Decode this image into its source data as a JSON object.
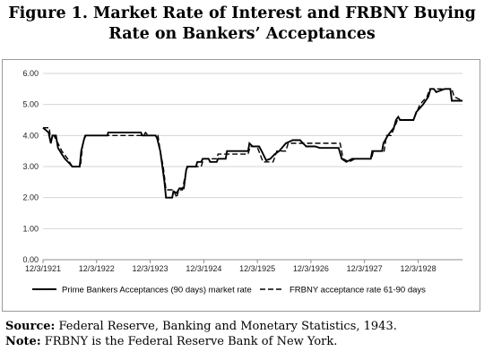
{
  "figure": {
    "title_line1": "Figure 1.  Market Rate of Interest and FRBNY Buying",
    "title_line2": "Rate on Bankers’ Acceptances"
  },
  "footnotes": {
    "source_label": "Source:",
    "source_text": " Federal Reserve, Banking and Monetary Statistics, 1943.",
    "note_label": "Note:",
    "note_text": " FRBNY is the Federal Reserve Bank of New York."
  },
  "chart_data": {
    "type": "line",
    "title": "",
    "xlabel": "",
    "ylabel": "",
    "x_range": [
      "1921-12-03",
      "1929-10-01"
    ],
    "ylim": [
      0,
      6
    ],
    "y_ticks": [
      "0.00",
      "1.00",
      "2.00",
      "3.00",
      "4.00",
      "5.00",
      "6.00"
    ],
    "x_ticks": [
      {
        "date": "1921-12-03",
        "label": "12/3/1921"
      },
      {
        "date": "1922-12-03",
        "label": "12/3/1922"
      },
      {
        "date": "1923-12-03",
        "label": "12/3/1923"
      },
      {
        "date": "1924-12-03",
        "label": "12/3/1924"
      },
      {
        "date": "1925-12-03",
        "label": "12/3/1925"
      },
      {
        "date": "1926-12-03",
        "label": "12/3/1926"
      },
      {
        "date": "1927-12-03",
        "label": "12/3/1927"
      },
      {
        "date": "1928-12-03",
        "label": "12/3/1928"
      }
    ],
    "grid": true,
    "legend_position": "bottom",
    "series": [
      {
        "name": "Prime Bankers Acceptances (90 days) market rate",
        "style": "solid",
        "color": "#000000",
        "points": [
          [
            "1921-12-03",
            4.25
          ],
          [
            "1922-01-10",
            4.1
          ],
          [
            "1922-01-25",
            3.75
          ],
          [
            "1922-02-05",
            4.0
          ],
          [
            "1922-03-01",
            4.0
          ],
          [
            "1922-03-15",
            3.6
          ],
          [
            "1922-04-10",
            3.4
          ],
          [
            "1922-05-01",
            3.25
          ],
          [
            "1922-06-01",
            3.1
          ],
          [
            "1922-06-20",
            3.0
          ],
          [
            "1922-08-10",
            3.0
          ],
          [
            "1922-08-20",
            3.5
          ],
          [
            "1922-09-10",
            3.9
          ],
          [
            "1922-09-20",
            4.0
          ],
          [
            "1923-02-15",
            4.0
          ],
          [
            "1923-02-20",
            4.1
          ],
          [
            "1923-10-01",
            4.1
          ],
          [
            "1923-10-10",
            4.0
          ],
          [
            "1924-01-10",
            4.0
          ],
          [
            "1924-01-20",
            3.9
          ],
          [
            "1924-02-10",
            3.5
          ],
          [
            "1924-02-25",
            3.0
          ],
          [
            "1924-03-10",
            2.5
          ],
          [
            "1924-03-20",
            2.0
          ],
          [
            "1924-05-01",
            2.0
          ],
          [
            "1924-05-10",
            2.2
          ],
          [
            "1924-06-01",
            2.15
          ],
          [
            "1924-06-20",
            2.3
          ],
          [
            "1924-07-20",
            2.3
          ],
          [
            "1924-08-05",
            2.9
          ],
          [
            "1924-08-15",
            3.0
          ],
          [
            "1924-10-10",
            3.0
          ],
          [
            "1924-10-20",
            3.15
          ],
          [
            "1924-11-15",
            3.15
          ],
          [
            "1924-11-25",
            3.25
          ],
          [
            "1925-01-05",
            3.25
          ],
          [
            "1925-01-15",
            3.15
          ],
          [
            "1925-03-01",
            3.15
          ],
          [
            "1925-03-10",
            3.25
          ],
          [
            "1925-05-01",
            3.25
          ],
          [
            "1925-05-10",
            3.5
          ],
          [
            "1925-10-01",
            3.5
          ],
          [
            "1925-10-10",
            3.75
          ],
          [
            "1925-11-01",
            3.65
          ],
          [
            "1925-12-15",
            3.65
          ],
          [
            "1926-01-01",
            3.5
          ],
          [
            "1926-02-01",
            3.2
          ],
          [
            "1926-03-01",
            3.25
          ],
          [
            "1926-04-01",
            3.4
          ],
          [
            "1926-05-01",
            3.5
          ],
          [
            "1926-06-15",
            3.75
          ],
          [
            "1926-08-01",
            3.85
          ],
          [
            "1926-09-20",
            3.85
          ],
          [
            "1926-10-10",
            3.75
          ],
          [
            "1926-11-01",
            3.65
          ],
          [
            "1927-01-01",
            3.65
          ],
          [
            "1927-02-01",
            3.6
          ],
          [
            "1927-06-10",
            3.6
          ],
          [
            "1927-07-01",
            3.25
          ],
          [
            "1927-08-01",
            3.15
          ],
          [
            "1927-09-10",
            3.25
          ],
          [
            "1928-01-15",
            3.25
          ],
          [
            "1928-01-25",
            3.5
          ],
          [
            "1928-04-01",
            3.5
          ],
          [
            "1928-04-10",
            3.75
          ],
          [
            "1928-05-10",
            4.0
          ],
          [
            "1928-06-20",
            4.25
          ],
          [
            "1928-07-05",
            4.5
          ],
          [
            "1928-07-20",
            4.6
          ],
          [
            "1928-08-01",
            4.5
          ],
          [
            "1928-11-01",
            4.5
          ],
          [
            "1928-11-20",
            4.75
          ],
          [
            "1929-01-05",
            5.0
          ],
          [
            "1929-02-10",
            5.25
          ],
          [
            "1929-02-25",
            5.5
          ],
          [
            "1929-03-20",
            5.5
          ],
          [
            "1929-04-05",
            5.4
          ],
          [
            "1929-06-01",
            5.5
          ],
          [
            "1929-07-10",
            5.5
          ],
          [
            "1929-07-20",
            5.12
          ],
          [
            "1929-10-01",
            5.12
          ]
        ]
      },
      {
        "name": "FRBNY acceptance rate 61-90 days",
        "style": "dashed",
        "color": "#000000",
        "points": [
          [
            "1921-12-03",
            4.25
          ],
          [
            "1922-01-15",
            4.25
          ],
          [
            "1922-01-20",
            4.0
          ],
          [
            "1922-02-15",
            4.0
          ],
          [
            "1922-03-15",
            3.75
          ],
          [
            "1922-04-10",
            3.5
          ],
          [
            "1922-05-20",
            3.25
          ],
          [
            "1922-06-20",
            3.0
          ],
          [
            "1922-08-15",
            3.0
          ],
          [
            "1922-09-01",
            3.75
          ],
          [
            "1922-09-15",
            4.0
          ],
          [
            "1923-10-20",
            4.0
          ],
          [
            "1923-11-01",
            4.1
          ],
          [
            "1923-11-20",
            4.0
          ],
          [
            "1924-01-25",
            4.0
          ],
          [
            "1924-02-10",
            3.5
          ],
          [
            "1924-03-01",
            3.0
          ],
          [
            "1924-03-20",
            2.25
          ],
          [
            "1924-05-10",
            2.25
          ],
          [
            "1924-06-01",
            2.0
          ],
          [
            "1924-06-15",
            2.25
          ],
          [
            "1924-07-10",
            2.25
          ],
          [
            "1924-08-10",
            3.0
          ],
          [
            "1924-11-15",
            3.0
          ],
          [
            "1924-12-01",
            3.25
          ],
          [
            "1925-03-01",
            3.25
          ],
          [
            "1925-03-10",
            3.4
          ],
          [
            "1925-10-01",
            3.4
          ],
          [
            "1925-10-15",
            3.65
          ],
          [
            "1925-12-01",
            3.65
          ],
          [
            "1926-01-10",
            3.15
          ],
          [
            "1926-03-20",
            3.15
          ],
          [
            "1926-04-15",
            3.5
          ],
          [
            "1926-06-15",
            3.5
          ],
          [
            "1926-07-01",
            3.75
          ],
          [
            "1927-06-20",
            3.75
          ],
          [
            "1927-07-10",
            3.25
          ],
          [
            "1927-08-20",
            3.15
          ],
          [
            "1927-10-01",
            3.25
          ],
          [
            "1928-01-20",
            3.25
          ],
          [
            "1928-02-01",
            3.5
          ],
          [
            "1928-04-15",
            3.5
          ],
          [
            "1928-05-01",
            4.0
          ],
          [
            "1928-06-01",
            4.0
          ],
          [
            "1928-07-15",
            4.5
          ],
          [
            "1928-11-01",
            4.5
          ],
          [
            "1928-12-15",
            5.0
          ],
          [
            "1929-02-01",
            5.25
          ],
          [
            "1929-02-20",
            5.5
          ],
          [
            "1929-07-20",
            5.5
          ],
          [
            "1929-08-05",
            5.25
          ],
          [
            "1929-10-01",
            5.12
          ]
        ]
      }
    ]
  }
}
